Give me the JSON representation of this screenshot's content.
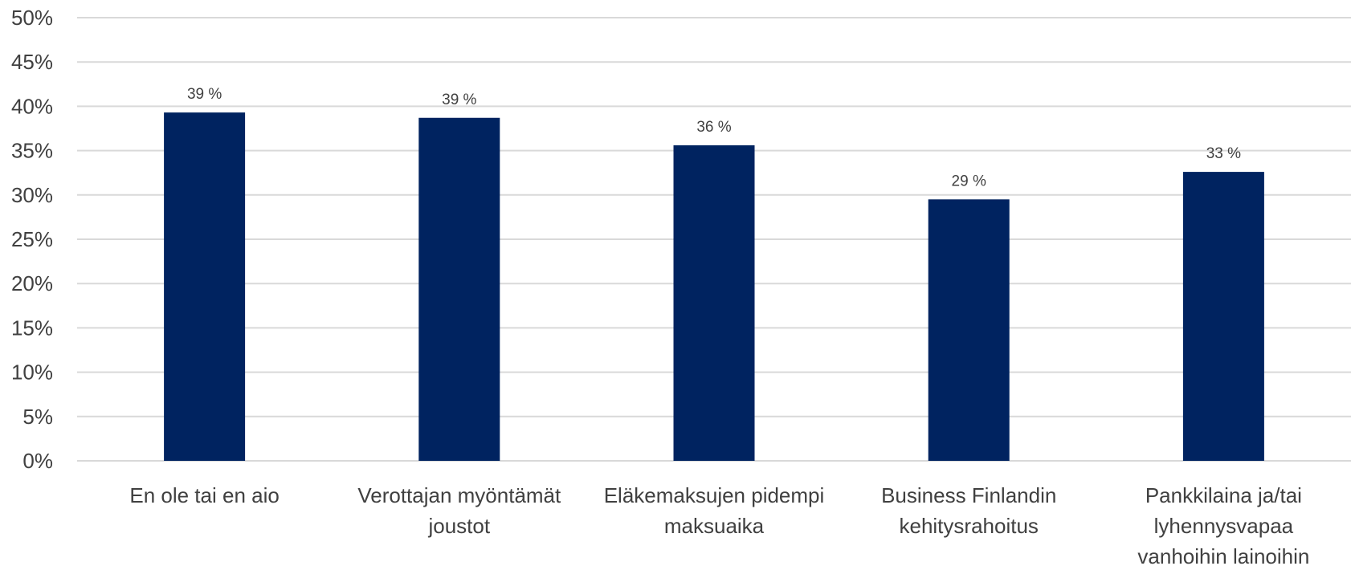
{
  "chart_data": {
    "type": "bar",
    "categories": [
      [
        "En ole tai en aio"
      ],
      [
        "Verottajan myöntämät",
        "joustot"
      ],
      [
        "Eläkemaksujen pidempi",
        "maksuaika"
      ],
      [
        "Business Finlandin",
        "kehitysrahoitus"
      ],
      [
        "Pankkilaina ja/tai",
        "lyhennysvapaa",
        "vanhoihin lainoihin"
      ]
    ],
    "values": [
      39.3,
      38.7,
      35.6,
      29.5,
      32.6
    ],
    "data_labels": [
      "39 %",
      "39 %",
      "36 %",
      "29 %",
      "33 %"
    ],
    "y_ticks": [
      "0%",
      "5%",
      "10%",
      "15%",
      "20%",
      "25%",
      "30%",
      "35%",
      "40%",
      "45%",
      "50%"
    ],
    "ylim": [
      0,
      50
    ],
    "grid": true,
    "bar_color": "#002360",
    "title": "",
    "xlabel": "",
    "ylabel": ""
  }
}
